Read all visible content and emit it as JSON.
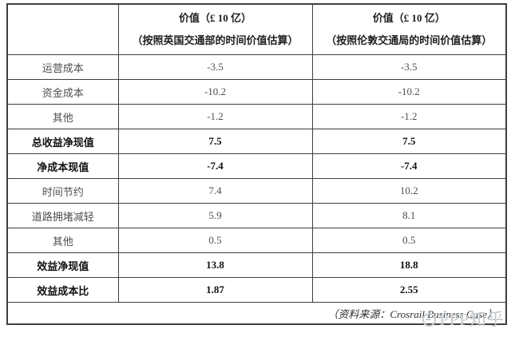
{
  "table": {
    "header": {
      "corner": "",
      "col_dft": {
        "line1": "价值（£ 10 亿）",
        "line2": "（按照英国交通部的时间价值估算）"
      },
      "col_tfl": {
        "line1": "价值（£ 10 亿）",
        "line2": "（按照伦敦交通局的时间价值估算）"
      }
    },
    "rows": [
      {
        "label": "运营成本",
        "dft": "-3.5",
        "tfl": "-3.5",
        "bold": false
      },
      {
        "label": "资金成本",
        "dft": "-10.2",
        "tfl": "-10.2",
        "bold": false
      },
      {
        "label": "其他",
        "dft": "-1.2",
        "tfl": "-1.2",
        "bold": false
      },
      {
        "label": "总收益净现值",
        "dft": "7.5",
        "tfl": "7.5",
        "bold": true
      },
      {
        "label": "净成本现值",
        "dft": "-7.4",
        "tfl": "-7.4",
        "bold": true
      },
      {
        "label": "时间节约",
        "dft": "7.4",
        "tfl": "10.2",
        "bold": false
      },
      {
        "label": "道路拥堵减轻",
        "dft": "5.9",
        "tfl": "8.1",
        "bold": false
      },
      {
        "label": "其他",
        "dft": "0.5",
        "tfl": "0.5",
        "bold": false
      },
      {
        "label": "效益净现值",
        "dft": "13.8",
        "tfl": "18.8",
        "bold": true
      },
      {
        "label": "效益成本比",
        "dft": "1.87",
        "tfl": "2.55",
        "bold": true
      }
    ],
    "source": "（资料来源：Crosrail Business Case）"
  },
  "watermark": {
    "text": "PPP知乎"
  },
  "colors": {
    "border": "#3e3e3e",
    "text_regular": "#4e4e4e",
    "text_bold": "#121212",
    "watermark": "#c2c8cd",
    "background": "#ffffff"
  }
}
